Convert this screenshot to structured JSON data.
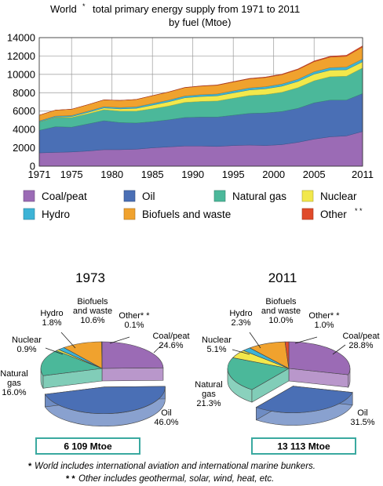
{
  "title_line1": "World",
  "title_star": "*",
  "title_line1b": "total primary energy supply from 1971 to 2011",
  "title_line2": "by fuel (Mtoe)",
  "chart_data": [
    {
      "type": "area",
      "stacked": true,
      "x": [
        1971,
        1973,
        1975,
        1977,
        1979,
        1981,
        1983,
        1985,
        1987,
        1989,
        1991,
        1993,
        1995,
        1997,
        1999,
        2001,
        2003,
        2005,
        2007,
        2009,
        2011
      ],
      "ylim": [
        0,
        14000
      ],
      "xlim": [
        1971,
        2011
      ],
      "yticks": [
        0,
        2000,
        4000,
        6000,
        8000,
        10000,
        12000,
        14000
      ],
      "xticks": [
        1971,
        1975,
        1980,
        1985,
        1990,
        1995,
        2000,
        2005,
        2011
      ],
      "grid": true,
      "series": [
        {
          "name": "Coal/peat",
          "color": "#9b6bb5",
          "values": [
            1450,
            1500,
            1550,
            1650,
            1800,
            1800,
            1850,
            2000,
            2100,
            2200,
            2200,
            2150,
            2250,
            2300,
            2250,
            2350,
            2600,
            2950,
            3200,
            3300,
            3780
          ]
        },
        {
          "name": "Oil",
          "color": "#4a6fb5",
          "values": [
            2450,
            2800,
            2700,
            2950,
            3150,
            2950,
            2850,
            2850,
            2950,
            3100,
            3150,
            3200,
            3300,
            3450,
            3550,
            3600,
            3700,
            3950,
            4000,
            3900,
            4130
          ]
        },
        {
          "name": "Natural gas",
          "color": "#4bb89a",
          "values": [
            900,
            990,
            1050,
            1100,
            1200,
            1250,
            1300,
            1400,
            1500,
            1650,
            1700,
            1750,
            1850,
            1950,
            2000,
            2100,
            2250,
            2400,
            2550,
            2600,
            2790
          ]
        },
        {
          "name": "Nuclear",
          "color": "#f2e84b",
          "values": [
            30,
            55,
            100,
            150,
            190,
            240,
            300,
            400,
            460,
            500,
            540,
            560,
            580,
            600,
            630,
            660,
            680,
            720,
            710,
            700,
            670
          ]
        },
        {
          "name": "Hydro",
          "color": "#3db3d6",
          "values": [
            100,
            110,
            120,
            130,
            140,
            150,
            160,
            170,
            180,
            190,
            195,
            200,
            215,
            220,
            225,
            230,
            240,
            260,
            270,
            290,
            300
          ]
        },
        {
          "name": "Biofuels and waste",
          "color": "#f0a22e",
          "values": [
            620,
            645,
            680,
            710,
            740,
            770,
            800,
            850,
            880,
            910,
            930,
            950,
            970,
            990,
            1000,
            1020,
            1050,
            1100,
            1150,
            1180,
            1310
          ]
        },
        {
          "name": "Other**",
          "color": "#e04a2a",
          "values": [
            6,
            6,
            7,
            8,
            9,
            11,
            13,
            18,
            22,
            27,
            32,
            38,
            44,
            50,
            56,
            62,
            70,
            80,
            95,
            110,
            130
          ]
        }
      ]
    },
    {
      "type": "pie",
      "title": "1973",
      "total_label": "6 109 Mtoe",
      "slices": [
        {
          "name": "Coal/peat",
          "value": 24.6,
          "label_name": "Coal/peat",
          "label_value": "24.6%",
          "color": "#9b6bb5",
          "exploded": false
        },
        {
          "name": "Oil",
          "value": 46.0,
          "label_name": "Oil",
          "label_value": "46.0%",
          "color": "#4a6fb5",
          "exploded": true
        },
        {
          "name": "Natural gas",
          "value": 16.0,
          "label_name": "Natural gas",
          "label_value": "16.0%",
          "color": "#4bb89a",
          "exploded": false
        },
        {
          "name": "Nuclear",
          "value": 0.9,
          "label_name": "Nuclear",
          "label_value": "0.9%",
          "color": "#f2e84b",
          "exploded": false
        },
        {
          "name": "Hydro",
          "value": 1.8,
          "label_name": "Hydro",
          "label_value": "1.8%",
          "color": "#3db3d6",
          "exploded": false
        },
        {
          "name": "Biofuels and waste",
          "value": 10.6,
          "label_name": "Biofuels and waste",
          "label_value": "10.6%",
          "color": "#f0a22e",
          "exploded": false
        },
        {
          "name": "Other**",
          "value": 0.1,
          "label_name": "Other**",
          "label_value": "0.1%",
          "color": "#e04a2a",
          "exploded": false
        }
      ]
    },
    {
      "type": "pie",
      "title": "2011",
      "total_label": "13 113 Mtoe",
      "slices": [
        {
          "name": "Coal/peat",
          "value": 28.8,
          "label_name": "Coal/peat",
          "label_value": "28.8%",
          "color": "#9b6bb5",
          "exploded": false
        },
        {
          "name": "Oil",
          "value": 31.5,
          "label_name": "Oil",
          "label_value": "31.5%",
          "color": "#4a6fb5",
          "exploded": true
        },
        {
          "name": "Natural gas",
          "value": 21.3,
          "label_name": "Natural gas",
          "label_value": "21.3%",
          "color": "#4bb89a",
          "exploded": false
        },
        {
          "name": "Nuclear",
          "value": 5.1,
          "label_name": "Nuclear",
          "label_value": "5.1%",
          "color": "#f2e84b",
          "exploded": false
        },
        {
          "name": "Hydro",
          "value": 2.3,
          "label_name": "Hydro",
          "label_value": "2.3%",
          "color": "#3db3d6",
          "exploded": false
        },
        {
          "name": "Biofuels and waste",
          "value": 10.0,
          "label_name": "Biofuels and waste",
          "label_value": "10.0%",
          "color": "#f0a22e",
          "exploded": false
        },
        {
          "name": "Other**",
          "value": 1.0,
          "label_name": "Other**",
          "label_value": "1.0%",
          "color": "#e04a2a",
          "exploded": false
        }
      ]
    }
  ],
  "legend": [
    {
      "label": "Coal/peat",
      "color": "#9b6bb5"
    },
    {
      "label": "Oil",
      "color": "#4a6fb5"
    },
    {
      "label": "Natural gas",
      "color": "#4bb89a"
    },
    {
      "label": "Nuclear",
      "color": "#f2e84b"
    },
    {
      "label": "Hydro",
      "color": "#3db3d6"
    },
    {
      "label": "Biofuels and waste",
      "color": "#f0a22e"
    },
    {
      "label": "Other",
      "suffix": "* *",
      "color": "#e04a2a"
    }
  ],
  "total_box_color": "#3aa9a0",
  "footnotes": [
    {
      "mark": "*",
      "text": "World includes international aviation and international marine bunkers."
    },
    {
      "mark": "* *",
      "text": "Other includes geothermal, solar, wind, heat, etc."
    }
  ]
}
